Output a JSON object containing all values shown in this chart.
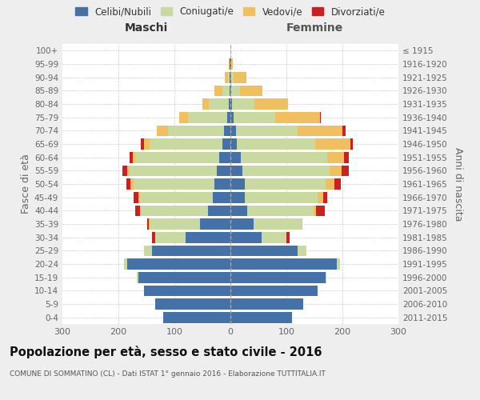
{
  "age_groups": [
    "0-4",
    "5-9",
    "10-14",
    "15-19",
    "20-24",
    "25-29",
    "30-34",
    "35-39",
    "40-44",
    "45-49",
    "50-54",
    "55-59",
    "60-64",
    "65-69",
    "70-74",
    "75-79",
    "80-84",
    "85-89",
    "90-94",
    "95-99",
    "100+"
  ],
  "birth_years": [
    "2011-2015",
    "2006-2010",
    "2001-2005",
    "1996-2000",
    "1991-1995",
    "1986-1990",
    "1981-1985",
    "1976-1980",
    "1971-1975",
    "1966-1970",
    "1961-1965",
    "1956-1960",
    "1951-1955",
    "1946-1950",
    "1941-1945",
    "1936-1940",
    "1931-1935",
    "1926-1930",
    "1921-1925",
    "1916-1920",
    "≤ 1915"
  ],
  "males": {
    "celibi": [
      120,
      135,
      155,
      165,
      185,
      140,
      80,
      55,
      40,
      32,
      28,
      25,
      20,
      15,
      12,
      6,
      3,
      2,
      1,
      1,
      0
    ],
    "coniugati": [
      0,
      0,
      0,
      2,
      5,
      15,
      55,
      90,
      120,
      130,
      145,
      155,
      150,
      130,
      100,
      70,
      35,
      12,
      4,
      1,
      0
    ],
    "vedovi": [
      0,
      0,
      0,
      0,
      0,
      0,
      0,
      1,
      2,
      3,
      5,
      5,
      5,
      10,
      20,
      15,
      12,
      15,
      5,
      1,
      0
    ],
    "divorziati": [
      0,
      0,
      0,
      0,
      0,
      0,
      5,
      3,
      8,
      8,
      8,
      8,
      5,
      5,
      0,
      0,
      0,
      0,
      0,
      0,
      0
    ]
  },
  "females": {
    "nubili": [
      110,
      130,
      155,
      170,
      190,
      120,
      55,
      42,
      30,
      25,
      25,
      22,
      18,
      12,
      10,
      5,
      3,
      2,
      1,
      1,
      0
    ],
    "coniugate": [
      0,
      0,
      0,
      2,
      5,
      15,
      45,
      85,
      118,
      130,
      145,
      155,
      155,
      140,
      110,
      75,
      40,
      15,
      5,
      1,
      0
    ],
    "vedove": [
      0,
      0,
      0,
      0,
      0,
      0,
      0,
      2,
      5,
      10,
      15,
      22,
      30,
      62,
      80,
      80,
      60,
      40,
      22,
      2,
      0
    ],
    "divorziate": [
      0,
      0,
      0,
      0,
      0,
      0,
      5,
      0,
      15,
      8,
      12,
      12,
      8,
      5,
      5,
      2,
      0,
      0,
      0,
      0,
      0
    ]
  },
  "colors": {
    "celibi": "#4472a8",
    "coniugati": "#c8daa0",
    "vedovi": "#f0c060",
    "divorziati": "#cc2020"
  },
  "xlim": 300,
  "title": "Popolazione per età, sesso e stato civile - 2016",
  "subtitle": "COMUNE DI SOMMATINO (CL) - Dati ISTAT 1° gennaio 2016 - Elaborazione TUTTITALIA.IT",
  "ylabel_left": "Fasce di età",
  "ylabel_right": "Anni di nascita",
  "xlabel_left": "Maschi",
  "xlabel_right": "Femmine",
  "legend_labels": [
    "Celibi/Nubili",
    "Coniugati/e",
    "Vedovi/e",
    "Divorziati/e"
  ],
  "bg_color": "#eeeeee",
  "plot_bg_color": "#ffffff"
}
